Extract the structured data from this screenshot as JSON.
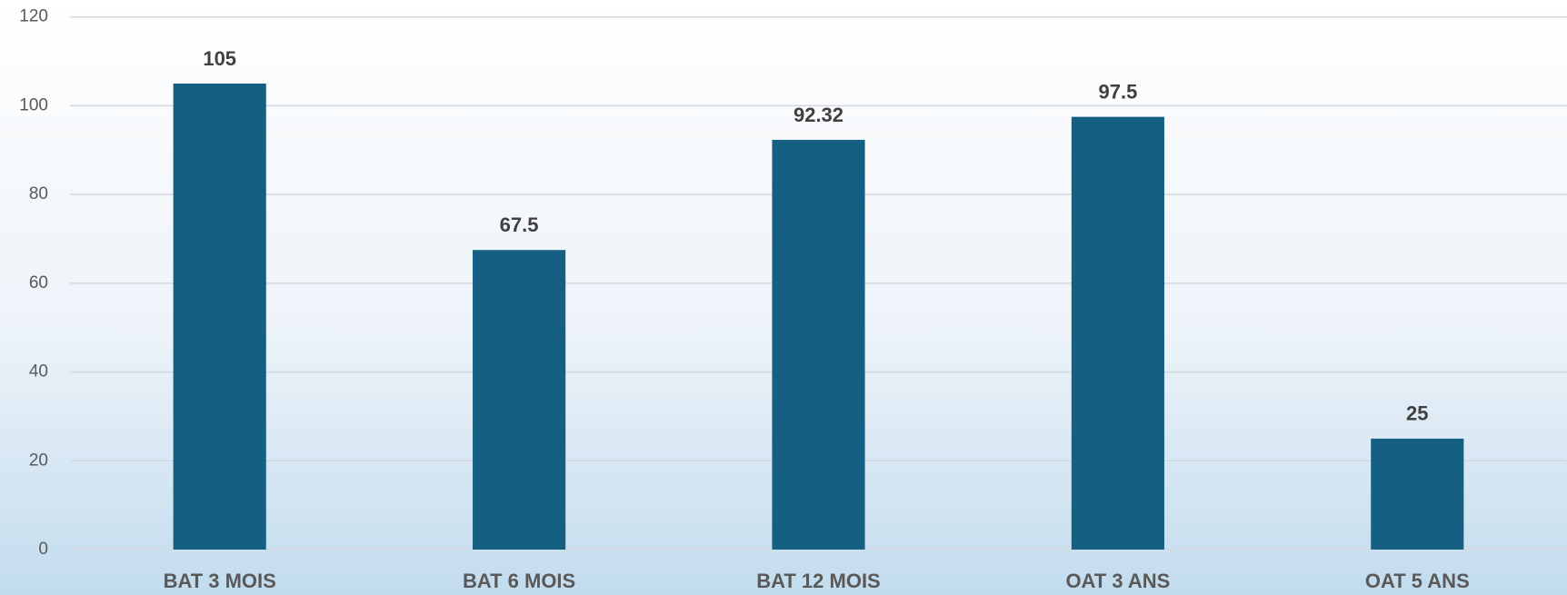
{
  "chart_data": {
    "type": "bar",
    "categories": [
      "BAT 3 MOIS",
      "BAT 6 MOIS",
      "BAT 12 MOIS",
      "OAT 3 ANS",
      "OAT 5 ANS"
    ],
    "values": [
      105,
      67.5,
      92.32,
      97.5,
      25
    ],
    "color": "#155f82",
    "ylim": [
      0,
      120
    ],
    "yticks": [
      0,
      20,
      40,
      60,
      80,
      100,
      120
    ],
    "grid": true
  }
}
